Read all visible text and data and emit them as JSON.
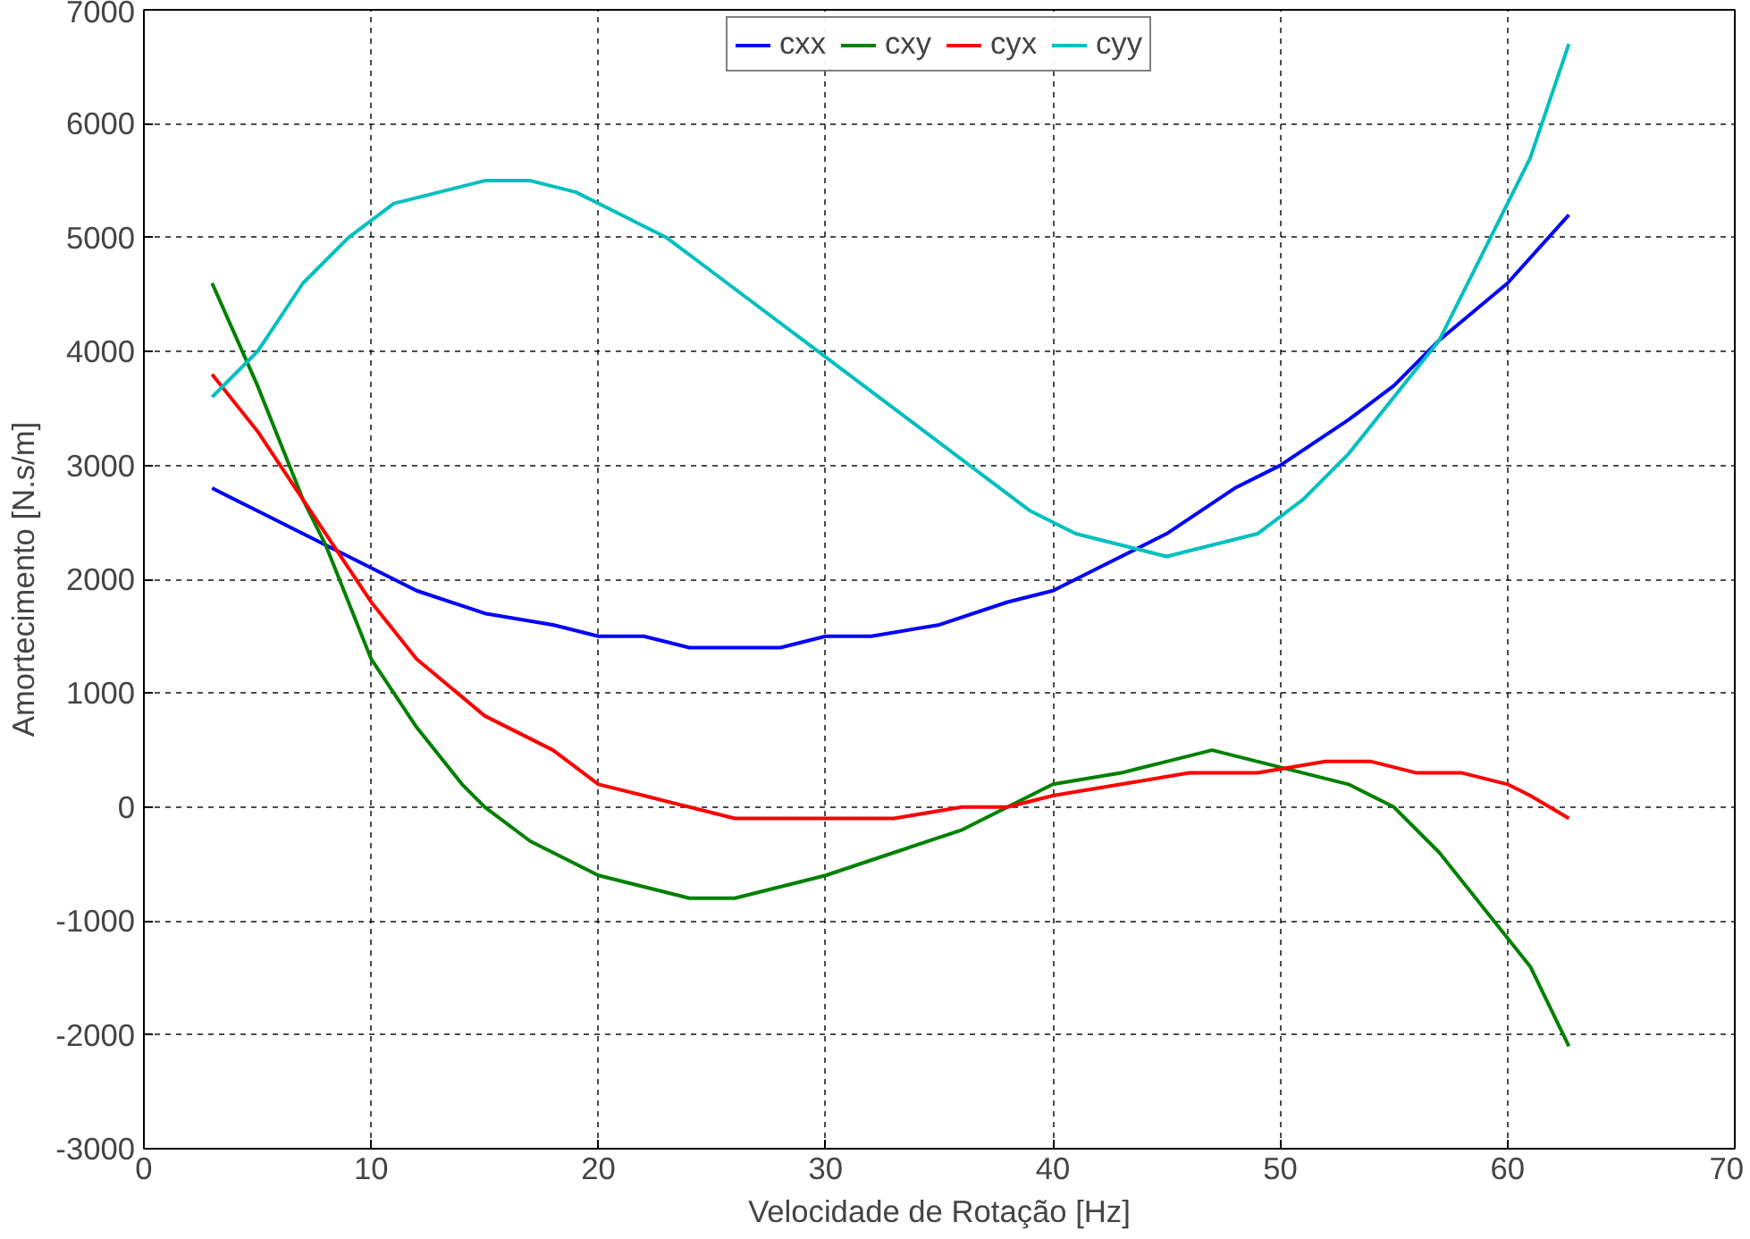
{
  "chart_data": {
    "type": "line",
    "xlabel": "Velocidade de Rotação [Hz]",
    "ylabel": "Amortecimento [N.s/m]",
    "xlim": [
      0,
      70
    ],
    "ylim": [
      -3000,
      7000
    ],
    "xticks": [
      0,
      10,
      20,
      30,
      40,
      50,
      60,
      70
    ],
    "yticks": [
      -3000,
      -2000,
      -1000,
      0,
      1000,
      2000,
      3000,
      4000,
      5000,
      6000,
      7000
    ],
    "grid": true,
    "legend": "top",
    "marker": "none",
    "line_style": "solid",
    "series": [
      {
        "name": "cxx",
        "color": "#0000ff",
        "x": [
          3,
          5,
          8,
          10,
          12,
          15,
          18,
          20,
          22,
          24,
          26,
          28,
          30,
          32,
          35,
          38,
          40,
          42,
          45,
          48,
          50,
          53,
          55,
          57,
          60,
          62.7
        ],
        "values": [
          2800,
          2600,
          2300,
          2100,
          1900,
          1700,
          1600,
          1500,
          1500,
          1400,
          1400,
          1400,
          1500,
          1500,
          1600,
          1800,
          1900,
          2100,
          2400,
          2800,
          3000,
          3400,
          3700,
          4100,
          4600,
          5200
        ]
      },
      {
        "name": "cxy",
        "color": "#008000",
        "x": [
          3,
          5,
          7,
          8,
          10,
          12,
          14,
          15,
          17,
          20,
          22,
          24,
          26,
          28,
          30,
          33,
          36,
          38,
          40,
          43,
          45,
          47,
          49,
          51,
          53,
          55,
          57,
          59,
          61,
          62.7
        ],
        "values": [
          4600,
          3700,
          2700,
          2300,
          1300,
          700,
          200,
          0,
          -300,
          -600,
          -700,
          -800,
          -800,
          -700,
          -600,
          -400,
          -200,
          0,
          200,
          300,
          400,
          500,
          400,
          300,
          200,
          0,
          -400,
          -900,
          -1400,
          -2100
        ]
      },
      {
        "name": "cyx",
        "color": "#ff0000",
        "x": [
          3,
          5,
          7,
          8,
          10,
          12,
          15,
          18,
          20,
          22,
          24,
          26,
          28,
          30,
          33,
          36,
          38,
          40,
          43,
          46,
          49,
          52,
          54,
          56,
          58,
          60,
          61,
          62.7
        ],
        "values": [
          3800,
          3300,
          2700,
          2400,
          1800,
          1300,
          800,
          500,
          200,
          100,
          0,
          -100,
          -100,
          -100,
          -100,
          0,
          0,
          100,
          200,
          300,
          300,
          400,
          400,
          300,
          300,
          200,
          100,
          -100
        ]
      },
      {
        "name": "cyy",
        "color": "#00bfbf",
        "x": [
          3,
          5,
          7,
          9,
          11,
          13,
          15,
          17,
          19,
          21,
          23,
          25,
          27,
          29,
          31,
          33,
          35,
          37,
          39,
          41,
          43,
          45,
          47,
          49,
          51,
          53,
          55,
          57,
          59,
          61,
          62.7
        ],
        "values": [
          3600,
          4000,
          4600,
          5000,
          5300,
          5400,
          5500,
          5500,
          5400,
          5200,
          5000,
          4700,
          4400,
          4100,
          3800,
          3500,
          3200,
          2900,
          2600,
          2400,
          2300,
          2200,
          2300,
          2400,
          2700,
          3100,
          3600,
          4100,
          4900,
          5700,
          6700
        ]
      }
    ]
  }
}
